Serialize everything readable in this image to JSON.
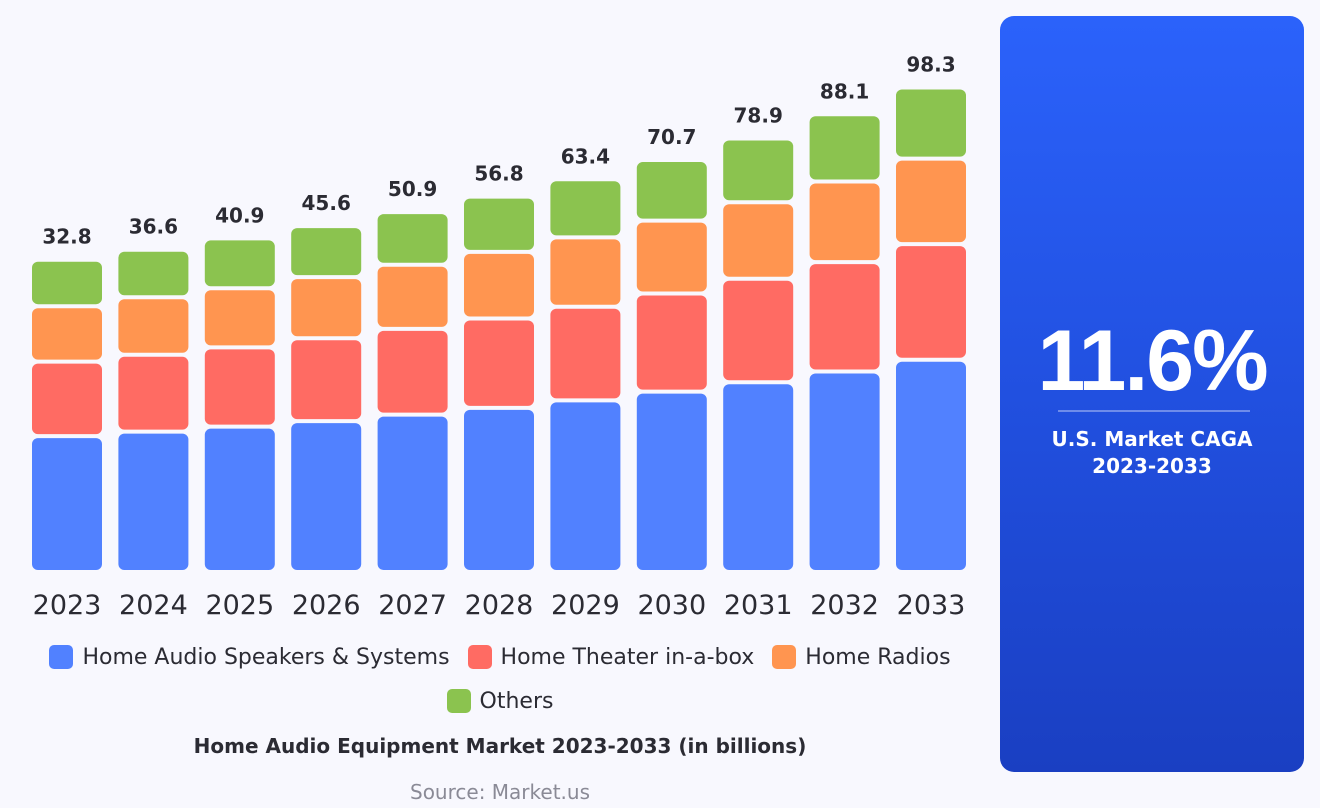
{
  "chart_data": {
    "type": "bar",
    "stacked": true,
    "title": "Home Audio Equipment Market 2023-2033 (in billions)",
    "source": "Source: Market.us",
    "categories": [
      "2023",
      "2024",
      "2025",
      "2026",
      "2027",
      "2028",
      "2029",
      "2030",
      "2031",
      "2032",
      "2033"
    ],
    "totals": [
      "32.8",
      "36.6",
      "40.9",
      "45.6",
      "50.9",
      "56.8",
      "63.4",
      "70.7",
      "78.9",
      "88.1",
      "98.3"
    ],
    "series": [
      {
        "name": "Home Audio Speakers & Systems",
        "color": "#5181ff",
        "values": [
          14.6,
          16.3,
          18.2,
          20.3,
          22.7,
          25.3,
          28.2,
          31.5,
          35.1,
          39.2,
          43.7
        ]
      },
      {
        "name": "Home Theater in-a-box",
        "color": "#ff6b63",
        "values": [
          7.8,
          8.7,
          9.7,
          10.9,
          12.1,
          13.5,
          15.1,
          16.8,
          18.8,
          21.0,
          23.4
        ]
      },
      {
        "name": "Home Radios",
        "color": "#ff9550",
        "values": [
          5.7,
          6.4,
          7.1,
          7.9,
          8.9,
          9.9,
          11.0,
          12.3,
          13.7,
          15.3,
          17.1
        ]
      },
      {
        "name": "Others",
        "color": "#8bc34f",
        "values": [
          4.7,
          5.2,
          5.9,
          6.5,
          7.2,
          8.1,
          9.1,
          10.1,
          11.3,
          12.6,
          14.1
        ]
      }
    ],
    "grid": false,
    "legend_placement": "bottom"
  },
  "panel": {
    "value": "11.6%",
    "label_line1": "U.S. Market CAGA",
    "label_line2": "2023-2033",
    "background": "#2458f0"
  }
}
